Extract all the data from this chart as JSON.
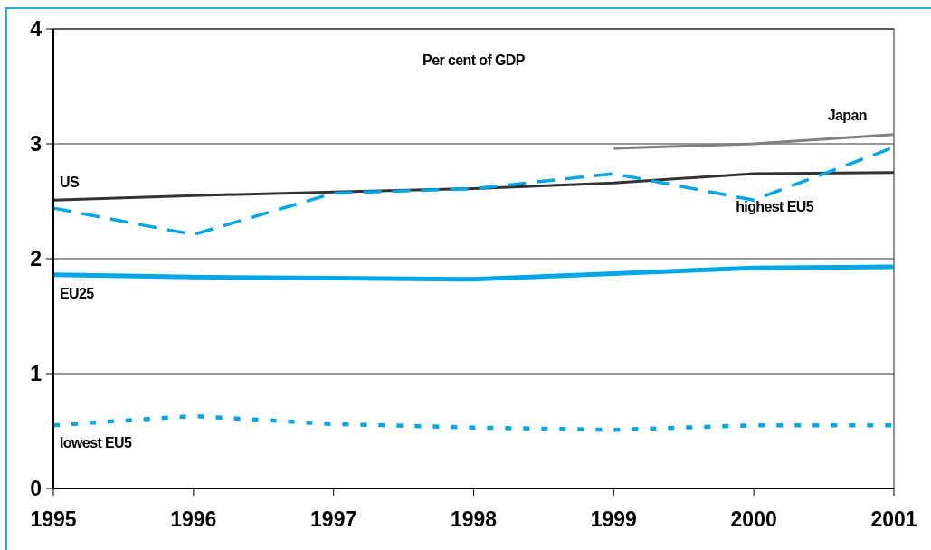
{
  "chart_data": {
    "type": "line",
    "annotations": [
      "Per cent of GDP"
    ],
    "x": [
      1995,
      1996,
      1997,
      1998,
      1999,
      2000,
      2001
    ],
    "xlim": [
      1995,
      2001
    ],
    "xticks": [
      1995,
      1996,
      1997,
      1998,
      1999,
      2000,
      2001
    ],
    "ylim": [
      0,
      4
    ],
    "yticks": [
      0,
      1,
      2,
      3,
      4
    ],
    "grid": "y",
    "series": [
      {
        "name": "US",
        "color": "#333333",
        "line_style": "solid",
        "values": [
          2.51,
          2.55,
          2.58,
          2.61,
          2.66,
          2.74,
          2.75
        ]
      },
      {
        "name": "EU25",
        "color": "#00a6e6",
        "line_style": "solid",
        "values": [
          1.86,
          1.84,
          1.83,
          1.82,
          1.87,
          1.92,
          1.93
        ]
      },
      {
        "name": "highest EU5",
        "color": "#00a6e6",
        "line_style": "dashed",
        "values": [
          2.44,
          2.21,
          2.57,
          2.61,
          2.74,
          2.51,
          2.97
        ]
      },
      {
        "name": "lowest EU5",
        "color": "#00a6e6",
        "line_style": "dotted",
        "values": [
          0.55,
          0.63,
          0.56,
          0.53,
          0.51,
          0.55,
          0.55
        ]
      },
      {
        "name": "Japan",
        "color": "#808080",
        "line_style": "solid",
        "values": [
          null,
          null,
          null,
          null,
          2.96,
          3.0,
          3.08
        ]
      }
    ]
  }
}
